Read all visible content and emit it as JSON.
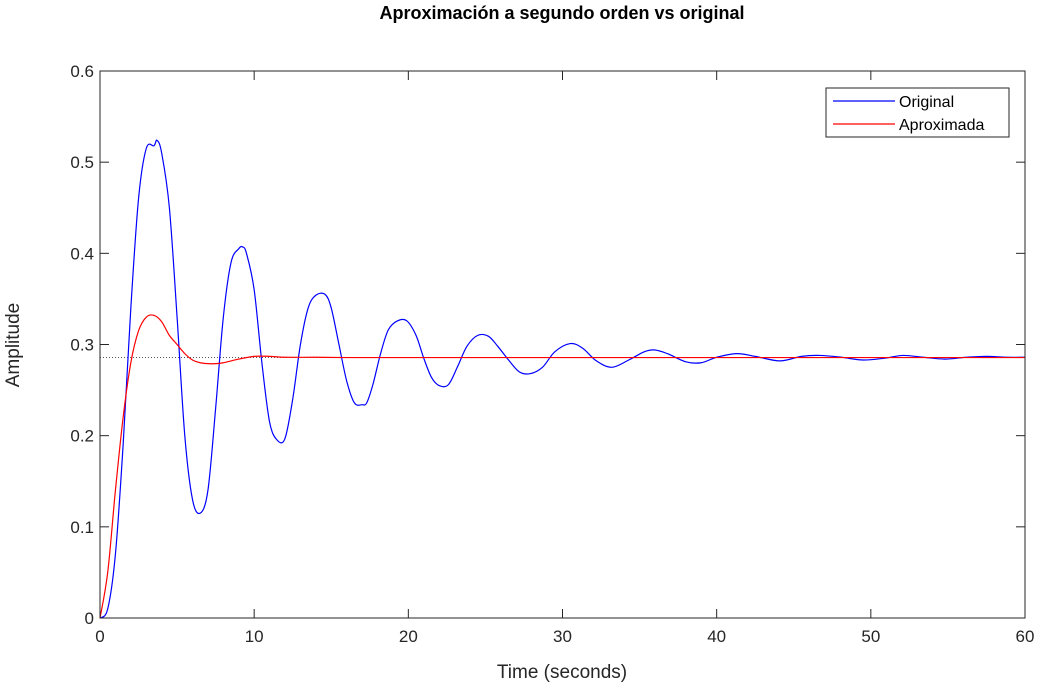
{
  "chart_data": {
    "type": "line",
    "title": "Aproximación a segundo orden vs original",
    "xlabel": "Time (seconds)",
    "ylabel": "Amplitude",
    "xlim": [
      0,
      60
    ],
    "ylim": [
      0,
      0.6
    ],
    "xticks": [
      0,
      10,
      20,
      30,
      40,
      50,
      60
    ],
    "yticks": [
      0,
      0.1,
      0.2,
      0.3,
      0.4,
      0.5,
      0.6
    ],
    "xtick_labels": [
      "0",
      "10",
      "20",
      "30",
      "40",
      "50",
      "60"
    ],
    "ytick_labels": [
      "0",
      "0.1",
      "0.2",
      "0.3",
      "0.4",
      "0.5",
      "0.6"
    ],
    "grid": false,
    "legend_position": "top-right",
    "steady_state_reference": 0.2857,
    "series": [
      {
        "name": "Original",
        "color": "#0000ff",
        "x": [
          0,
          0.5,
          1,
          1.5,
          2,
          2.5,
          3,
          3.5,
          3.7,
          4,
          4.5,
          5,
          5.5,
          6,
          6.5,
          7,
          7.5,
          8,
          8.5,
          9,
          9.25,
          9.5,
          10,
          10.5,
          11,
          11.5,
          12,
          12.5,
          13,
          13.5,
          14,
          14.6,
          15,
          15.5,
          16,
          16.5,
          17,
          17.3,
          17.7,
          18.2,
          18.7,
          19.3,
          19.9,
          20.5,
          21,
          21.5,
          22,
          22.6,
          23.2,
          23.8,
          24.5,
          25.2,
          25.8,
          26.5,
          27.2,
          27.9,
          28.7,
          29.5,
          30.5,
          31.3,
          32.2,
          33.2,
          34.3,
          35.3,
          36,
          36.8,
          38,
          39,
          40,
          41.3,
          42.5,
          44.1,
          45.5,
          46.7,
          48.1,
          49.5,
          50.9,
          52.1,
          53.4,
          54.8,
          56.2,
          57.5,
          58.8,
          60
        ],
        "y": [
          0,
          0.01,
          0.07,
          0.19,
          0.34,
          0.46,
          0.515,
          0.518,
          0.524,
          0.51,
          0.45,
          0.33,
          0.2,
          0.13,
          0.115,
          0.14,
          0.23,
          0.33,
          0.39,
          0.405,
          0.407,
          0.4,
          0.36,
          0.28,
          0.215,
          0.195,
          0.197,
          0.24,
          0.3,
          0.34,
          0.354,
          0.355,
          0.34,
          0.3,
          0.26,
          0.236,
          0.234,
          0.236,
          0.256,
          0.29,
          0.316,
          0.326,
          0.326,
          0.31,
          0.285,
          0.264,
          0.255,
          0.256,
          0.276,
          0.298,
          0.31,
          0.309,
          0.298,
          0.283,
          0.27,
          0.268,
          0.275,
          0.292,
          0.301,
          0.296,
          0.282,
          0.275,
          0.283,
          0.292,
          0.294,
          0.29,
          0.281,
          0.28,
          0.286,
          0.29,
          0.287,
          0.282,
          0.287,
          0.288,
          0.286,
          0.283,
          0.285,
          0.288,
          0.286,
          0.284,
          0.286,
          0.287,
          0.286,
          0.286
        ]
      },
      {
        "name": "Aproximada",
        "color": "#ff0000",
        "x": [
          0,
          0.5,
          1,
          1.5,
          2,
          2.5,
          3,
          3.5,
          4,
          4.5,
          5,
          5.5,
          6,
          6.5,
          7,
          7.5,
          8,
          8.5,
          9,
          10,
          11,
          12,
          14,
          16,
          20,
          30,
          40,
          50,
          60
        ],
        "y": [
          0,
          0.05,
          0.14,
          0.22,
          0.28,
          0.315,
          0.33,
          0.332,
          0.325,
          0.31,
          0.3,
          0.29,
          0.283,
          0.28,
          0.279,
          0.279,
          0.28,
          0.282,
          0.284,
          0.287,
          0.287,
          0.286,
          0.286,
          0.2857,
          0.2857,
          0.2857,
          0.2857,
          0.2857,
          0.2857
        ]
      }
    ]
  }
}
